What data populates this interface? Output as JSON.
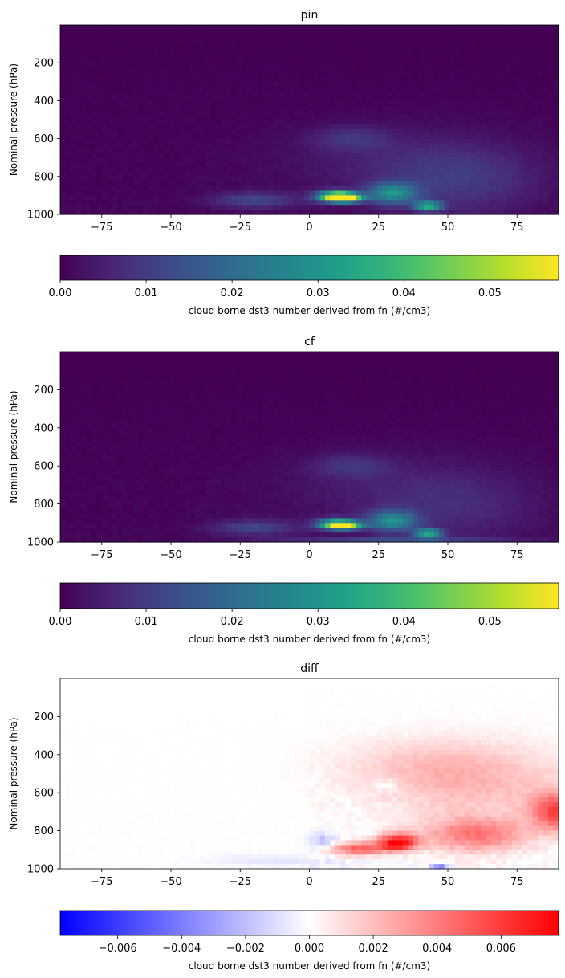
{
  "chart_data": [
    {
      "type": "heatmap",
      "title": "pin",
      "ylabel": "Nominal pressure (hPa)",
      "xlabel": "",
      "xlim": [
        -90,
        90
      ],
      "ylim": [
        1000,
        0
      ],
      "xticks": [
        -75,
        -50,
        -25,
        0,
        25,
        50,
        75
      ],
      "yticks": [
        200,
        400,
        600,
        800,
        1000
      ],
      "colormap": "viridis",
      "colorbar": {
        "label": "cloud borne dst3 number derived from fn (#/cm3)",
        "min": 0.0,
        "max": 0.058,
        "ticks": [
          "0.00",
          "0.01",
          "0.02",
          "0.03",
          "0.04",
          "0.05"
        ]
      },
      "features": [
        {
          "lat": 13,
          "p": 910,
          "value": 0.058
        },
        {
          "lat": 30,
          "p": 890,
          "value": 0.028
        },
        {
          "lat": 43,
          "p": 950,
          "value": 0.035
        },
        {
          "lat": -20,
          "p": 920,
          "value": 0.012
        },
        {
          "lat": 15,
          "p": 600,
          "value": 0.008
        },
        {
          "lat": 60,
          "p": 850,
          "value": 0.008
        }
      ]
    },
    {
      "type": "heatmap",
      "title": "cf",
      "ylabel": "Nominal pressure (hPa)",
      "xlabel": "",
      "xlim": [
        -90,
        90
      ],
      "ylim": [
        1000,
        0
      ],
      "xticks": [
        -75,
        -50,
        -25,
        0,
        25,
        50,
        75
      ],
      "yticks": [
        200,
        400,
        600,
        800,
        1000
      ],
      "colormap": "viridis",
      "colorbar": {
        "label": "cloud borne dst3 number derived from fn (#/cm3)",
        "min": 0.0,
        "max": 0.058,
        "ticks": [
          "0.00",
          "0.01",
          "0.02",
          "0.03",
          "0.04",
          "0.05"
        ]
      },
      "features": [
        {
          "lat": 13,
          "p": 915,
          "value": 0.045
        },
        {
          "lat": 30,
          "p": 890,
          "value": 0.022
        },
        {
          "lat": 43,
          "p": 955,
          "value": 0.035
        },
        {
          "lat": -20,
          "p": 930,
          "value": 0.01
        },
        {
          "lat": 15,
          "p": 600,
          "value": 0.007
        },
        {
          "lat": 60,
          "p": 850,
          "value": 0.005
        }
      ]
    },
    {
      "type": "heatmap",
      "title": "diff",
      "ylabel": "Nominal pressure (hPa)",
      "xlabel": "",
      "xlim": [
        -90,
        90
      ],
      "ylim": [
        1000,
        0
      ],
      "xticks": [
        -75,
        -50,
        -25,
        0,
        25,
        50,
        75
      ],
      "yticks": [
        200,
        400,
        600,
        800,
        1000
      ],
      "colormap": "bwr",
      "colorbar": {
        "label": "cloud borne dst3 number derived from fn (#/cm3)",
        "min": -0.0078,
        "max": 0.0078,
        "ticks": [
          "−0.006",
          "−0.004",
          "−0.002",
          "0.000",
          "0.002",
          "0.004",
          "0.006"
        ]
      },
      "features": [
        {
          "lat": 32,
          "p": 860,
          "value": 0.0075
        },
        {
          "lat": 20,
          "p": 890,
          "value": 0.005
        },
        {
          "lat": 60,
          "p": 820,
          "value": 0.004
        },
        {
          "lat": 88,
          "p": 700,
          "value": 0.0055
        },
        {
          "lat": 47,
          "p": 980,
          "value": -0.004
        },
        {
          "lat": 5,
          "p": 850,
          "value": -0.002
        }
      ]
    }
  ]
}
